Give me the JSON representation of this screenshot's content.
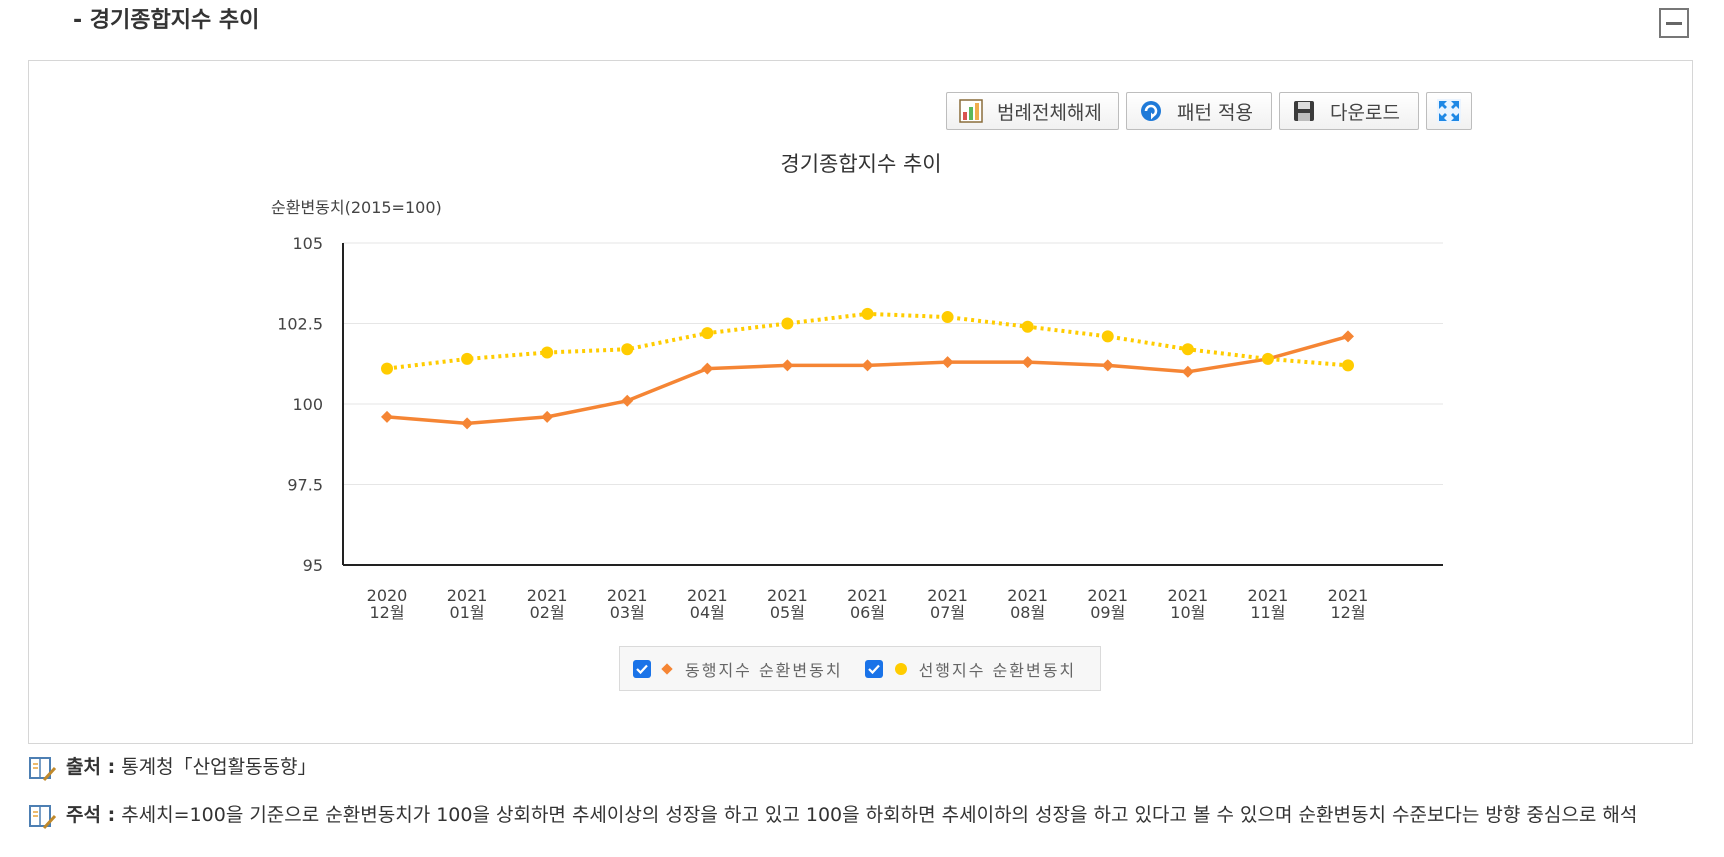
{
  "section": {
    "title": "- 경기종합지수 추이"
  },
  "toolbar": {
    "legend_clear": "범례전체해제",
    "pattern_apply": "패턴 적용",
    "download": "다운로드"
  },
  "icons": {
    "legend_clear": "bar-chart-icon",
    "pattern_apply": "refresh-icon",
    "download": "save-icon",
    "fullscreen": "expand-icon",
    "collapse": "minus-icon",
    "note": "book-pen-icon"
  },
  "chart_data": {
    "type": "line",
    "title": "경기종합지수 추이",
    "ylabel": "순환변동치(2015=100)",
    "xlabel": "",
    "categories": [
      [
        "2020",
        "12월"
      ],
      [
        "2021",
        "01월"
      ],
      [
        "2021",
        "02월"
      ],
      [
        "2021",
        "03월"
      ],
      [
        "2021",
        "04월"
      ],
      [
        "2021",
        "05월"
      ],
      [
        "2021",
        "06월"
      ],
      [
        "2021",
        "07월"
      ],
      [
        "2021",
        "08월"
      ],
      [
        "2021",
        "09월"
      ],
      [
        "2021",
        "10월"
      ],
      [
        "2021",
        "11월"
      ],
      [
        "2021",
        "12월"
      ]
    ],
    "ylim": [
      95,
      105
    ],
    "yticks": [
      95,
      97.5,
      100,
      102.5,
      105
    ],
    "grid": true,
    "legend_position": "bottom",
    "series": [
      {
        "name": "동행지수 순환변동치",
        "color": "#f58534",
        "marker": "diamond",
        "style": "solid",
        "values": [
          99.6,
          99.4,
          99.6,
          100.1,
          101.1,
          101.2,
          101.2,
          101.3,
          101.3,
          101.2,
          101.0,
          101.4,
          102.1
        ]
      },
      {
        "name": "선행지수 순환변동치",
        "color": "#ffcc00",
        "marker": "circle",
        "style": "dotted",
        "values": [
          101.1,
          101.4,
          101.6,
          101.7,
          102.2,
          102.5,
          102.8,
          102.7,
          102.4,
          102.1,
          101.7,
          101.4,
          101.2
        ]
      }
    ]
  },
  "notes": {
    "source_label": "출처 :",
    "source_text": "통계청「산업활동동향」",
    "remark_label": "주석 :",
    "remark_text": "추세치=100을 기준으로 순환변동치가 100을 상회하면 추세이상의 성장을 하고 있고 100을 하회하면 추세이하의 성장을 하고 있다고 볼 수 있으며 순환변동치 수준보다는 방향 중심으로 해석"
  }
}
